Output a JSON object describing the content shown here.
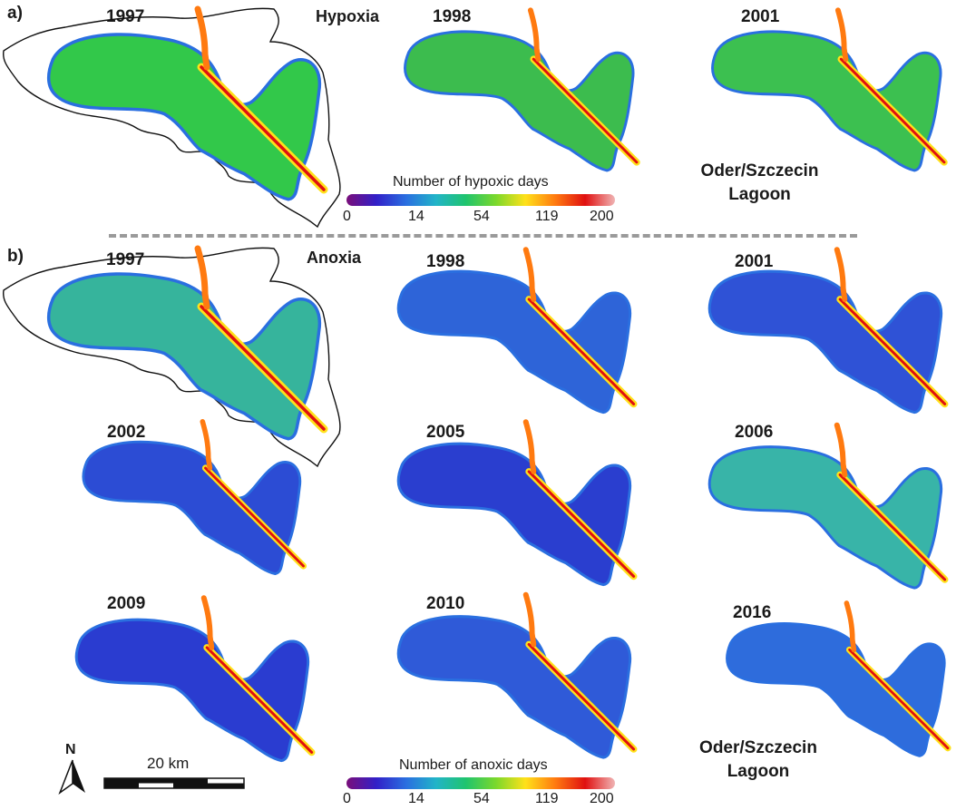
{
  "panel_a": {
    "letter": "a)",
    "mode": "Hypoxia",
    "years": [
      "1997",
      "1998",
      "2001"
    ],
    "colorbar": {
      "title": "Number of hypoxic days",
      "ticks": [
        "0",
        "14",
        "54",
        "119",
        "200"
      ]
    },
    "region_label": [
      "Oder/Szczecin",
      "Lagoon"
    ]
  },
  "panel_b": {
    "letter": "b)",
    "mode": "Anoxia",
    "years": [
      "1997",
      "1998",
      "2001",
      "2002",
      "2005",
      "2006",
      "2009",
      "2010",
      "2016"
    ],
    "colorbar": {
      "title": "Number of anoxic days",
      "ticks": [
        "0",
        "14",
        "54",
        "119",
        "200"
      ]
    },
    "region_label": [
      "Oder/Szczecin",
      "Lagoon"
    ]
  },
  "north_arrow": {
    "label": "N"
  },
  "scale_bar": {
    "label": "20 km"
  },
  "colormap": [
    "#7a0e7a",
    "#3220c8",
    "#2a6fe0",
    "#22b4c8",
    "#1fc46e",
    "#7ad82c",
    "#ffe11a",
    "#ff7a10",
    "#e01010",
    "#f0b4b4"
  ],
  "map_fills": {
    "hyp_1997": "#32c84a",
    "hyp_1998": "#3cbc4e",
    "hyp_2001": "#3cc050",
    "anx_1997": "#36b49c",
    "anx_1998": "#2e64d8",
    "anx_2001": "#2f52d6",
    "anx_2002": "#2c4cd4",
    "anx_2005": "#2a3ecf",
    "anx_2006": "#38b4a8",
    "anx_2009": "#2a3cd0",
    "anx_2010": "#2f5ad8",
    "anx_2016": "#2e6cdc"
  }
}
